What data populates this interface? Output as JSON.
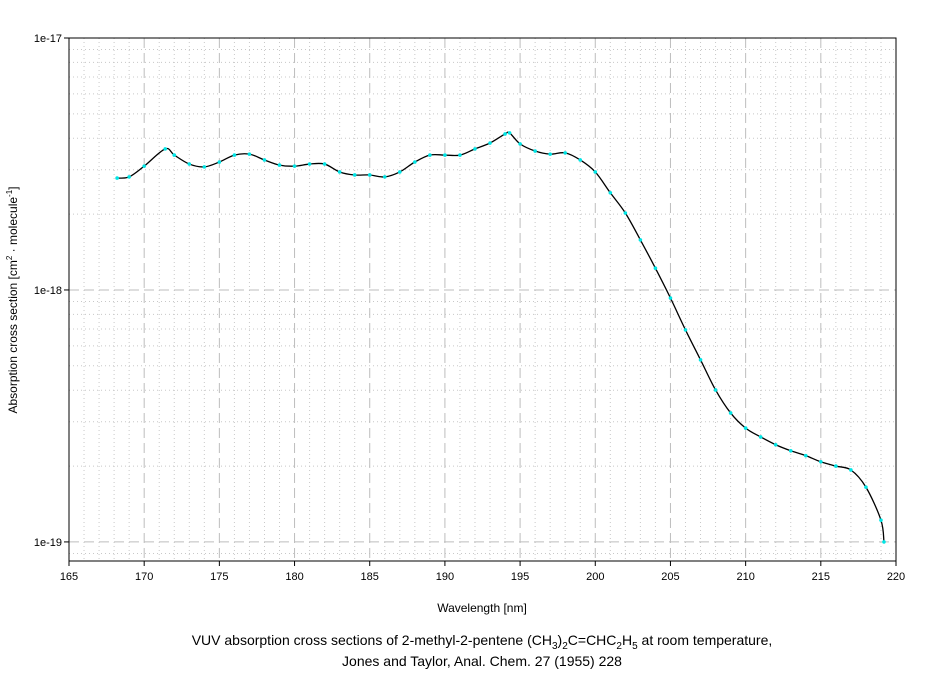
{
  "chart_data": {
    "type": "line",
    "title": "",
    "xlabel": "Wavelength [nm]",
    "ylabel_parts": [
      "Absorption cross section [cm",
      "2",
      " · molecule",
      "-1",
      "]"
    ],
    "ylabel": "Absorption cross section [cm2 · molecule-1]",
    "xlim": [
      165,
      220
    ],
    "ylim": [
      8.4e-20,
      1e-17
    ],
    "yscale": "log",
    "grid": true,
    "x_ticks": [
      165,
      170,
      175,
      180,
      185,
      190,
      195,
      200,
      205,
      210,
      215,
      220
    ],
    "x_tick_labels": [
      "165",
      "170",
      "175",
      "180",
      "185",
      "190",
      "195",
      "200",
      "205",
      "210",
      "215",
      "220"
    ],
    "y_ticks": [
      1e-17,
      1e-18,
      1e-19
    ],
    "y_tick_labels": [
      "1e-17",
      "1e-18",
      "1e-19"
    ],
    "line_color": "#000000",
    "marker_color": "#00e5e5",
    "series": [
      {
        "name": "2-methyl-2-pentene",
        "x": [
          168.2,
          169,
          170,
          171.4,
          172,
          173,
          174,
          175,
          176,
          177,
          178,
          179,
          180,
          181,
          182,
          183,
          184,
          185,
          186,
          187,
          188,
          189,
          190,
          191,
          192,
          193,
          194,
          194.3,
          195,
          196,
          197,
          198,
          199,
          200,
          201,
          202,
          203,
          204,
          205,
          206,
          207,
          208,
          209,
          210,
          211,
          212,
          213,
          214,
          215,
          216,
          217,
          218,
          219,
          219.2
        ],
        "y": [
          2.78e-18,
          2.81e-18,
          3.1e-18,
          3.63e-18,
          3.43e-18,
          3.16e-18,
          3.08e-18,
          3.22e-18,
          3.43e-18,
          3.46e-18,
          3.28e-18,
          3.13e-18,
          3.1e-18,
          3.16e-18,
          3.16e-18,
          2.94e-18,
          2.86e-18,
          2.86e-18,
          2.81e-18,
          2.94e-18,
          3.22e-18,
          3.43e-18,
          3.43e-18,
          3.43e-18,
          3.63e-18,
          3.83e-18,
          4.16e-18,
          4.2e-18,
          3.8e-18,
          3.56e-18,
          3.46e-18,
          3.5e-18,
          3.28e-18,
          2.94e-18,
          2.43e-18,
          2.02e-18,
          1.58e-18,
          1.22e-18,
          9.29e-19,
          6.94e-19,
          5.28e-19,
          4.01e-19,
          3.25e-19,
          2.83e-19,
          2.61e-19,
          2.43e-19,
          2.3e-19,
          2.2e-19,
          2.08e-19,
          2e-19,
          1.93e-19,
          1.65e-19,
          1.22e-19,
          1e-19
        ]
      }
    ]
  },
  "caption": {
    "line1_parts": [
      "VUV absorption cross sections of 2-methyl-2-pentene (CH",
      "3",
      ")",
      "2",
      "C=CHC",
      "2",
      "H",
      "5",
      " at room temperature,"
    ],
    "line2": "Jones and Taylor, Anal. Chem. 27 (1955) 228"
  }
}
